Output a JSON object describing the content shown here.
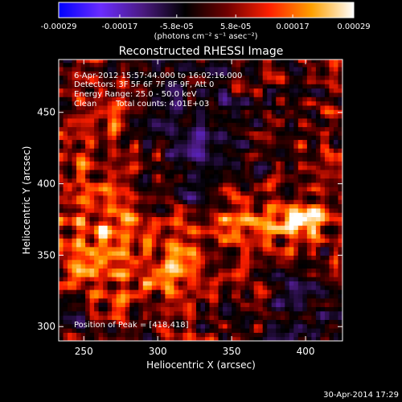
{
  "chart_data": {
    "type": "heatmap",
    "title": "Reconstructed RHESSI Image",
    "xlabel": "Heliocentric X (arcsec)",
    "ylabel": "Heliocentric Y (arcsec)",
    "xlim": [
      233,
      425
    ],
    "ylim": [
      290,
      487
    ],
    "x_ticks": [
      {
        "value": 250,
        "label": "250"
      },
      {
        "value": 300,
        "label": "300"
      },
      {
        "value": 350,
        "label": "350"
      },
      {
        "value": 400,
        "label": "400"
      }
    ],
    "y_ticks": [
      {
        "value": 300,
        "label": "300"
      },
      {
        "value": 350,
        "label": "350"
      },
      {
        "value": 400,
        "label": "400"
      },
      {
        "value": 450,
        "label": "450"
      }
    ],
    "colorbar": {
      "range": [
        -0.00029,
        0.00029
      ],
      "ticks": [
        {
          "value": -0.00029,
          "label": "-0.00029"
        },
        {
          "value": -0.00017,
          "label": "-0.00017"
        },
        {
          "value": -5.8e-05,
          "label": "-5.8e-05"
        },
        {
          "value": 5.8e-05,
          "label": "5.8e-05"
        },
        {
          "value": 0.00017,
          "label": "0.00017"
        },
        {
          "value": 0.00029,
          "label": "0.00029"
        }
      ],
      "unit": "(photons cm⁻² s⁻¹ asec⁻²)",
      "colors": [
        "#0000ff",
        "#6a2cff",
        "#4a1a80",
        "#000000",
        "#700000",
        "#ff2000",
        "#ffa000",
        "#ffffff"
      ]
    },
    "annotations": {
      "time_range": "6-Apr-2012 15:57:44.000 to 16:02:16.000",
      "detectors": "Detectors: 3F 5F 6F 7F 8F 9F, Att 0",
      "energy": "Energy Range: 25.0 - 50.0 keV",
      "clean": "Clean",
      "total_counts": "Total counts: 4.01E+03",
      "peak": "Position of Peak = [418,418]"
    },
    "peak": [
      418,
      418
    ],
    "grid": false
  },
  "footer": {
    "timestamp": "30-Apr-2014 17:29"
  }
}
